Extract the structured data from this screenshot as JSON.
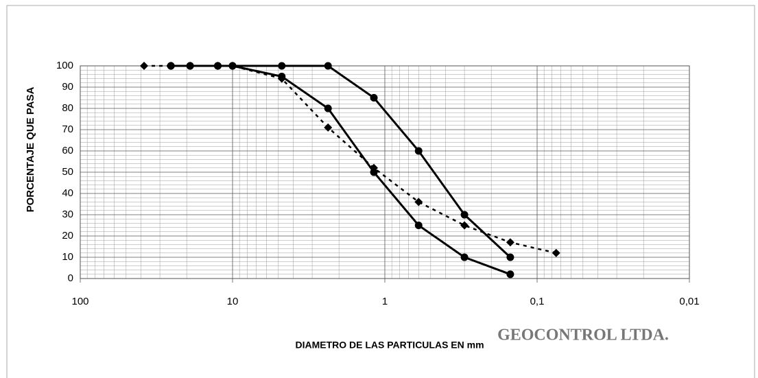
{
  "chart_data": {
    "type": "line",
    "ylabel": "PORCENTAJE QUE PASA",
    "xlabel": "DIAMETRO DE LAS PARTICULAS EN mm",
    "annotation": "GEOCONTROL LTDA.",
    "xscale": "log",
    "xlim": [
      100,
      0.01
    ],
    "xticks": [
      100,
      10,
      1,
      {
        "value": 0.1,
        "label": "0,1"
      },
      {
        "value": 0.01,
        "label": "0,01"
      }
    ],
    "ylim": [
      0,
      100
    ],
    "yticks": [
      0,
      10,
      20,
      30,
      40,
      50,
      60,
      70,
      80,
      90,
      100
    ],
    "grid": true,
    "series": [
      {
        "color": "#000000",
        "marker": "circle",
        "dashed": false,
        "x": [
          25.4,
          19,
          12.5,
          10,
          4.75,
          2.36,
          1.18,
          0.6,
          0.3,
          0.15
        ],
        "values": [
          100,
          100,
          100,
          100,
          100,
          100,
          85,
          60,
          30,
          10
        ]
      },
      {
        "color": "#000000",
        "marker": "circle",
        "dashed": false,
        "x": [
          25.4,
          19,
          12.5,
          10,
          4.75,
          2.36,
          1.18,
          0.6,
          0.3,
          0.15
        ],
        "values": [
          100,
          100,
          100,
          100,
          95,
          80,
          50,
          25,
          10,
          2
        ]
      },
      {
        "color": "#000000",
        "marker": "diamond",
        "dashed": true,
        "x": [
          38.1,
          25.4,
          19,
          12.5,
          10,
          4.75,
          2.36,
          1.18,
          0.6,
          0.3,
          0.15,
          0.075
        ],
        "values": [
          100,
          100,
          100,
          100,
          100,
          94,
          71,
          52,
          36,
          25,
          17,
          12
        ]
      }
    ]
  }
}
